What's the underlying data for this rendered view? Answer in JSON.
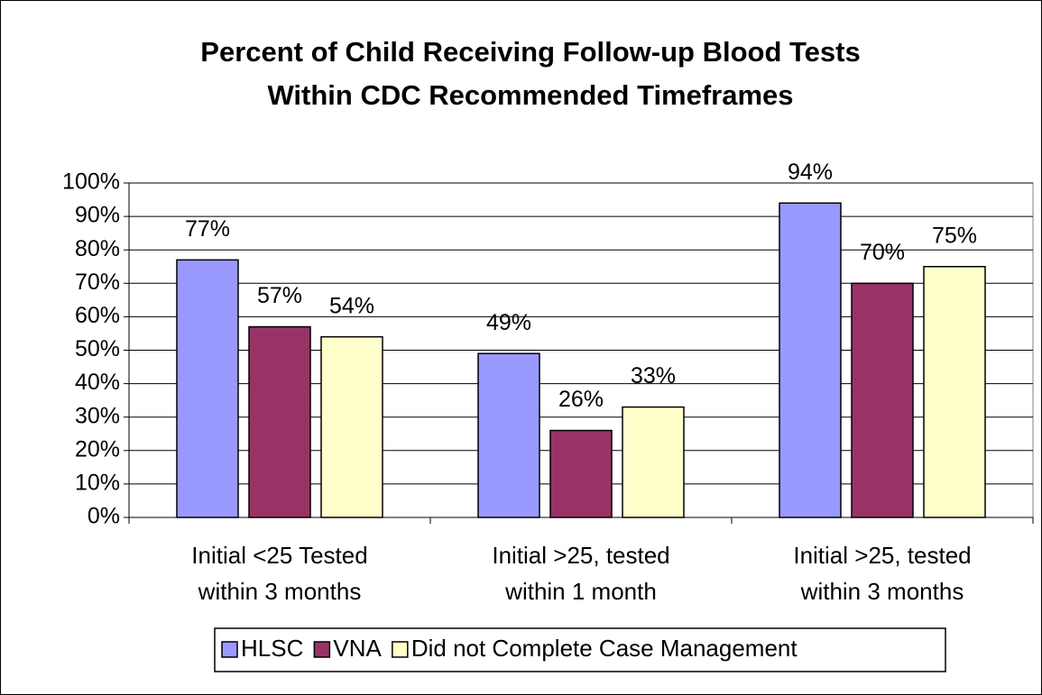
{
  "chart_data": {
    "type": "bar",
    "title": [
      "Percent of Child Receiving Follow-up Blood Tests",
      "Within CDC Recommended Timeframes"
    ],
    "categories": [
      [
        "Initial <25 Tested",
        "within 3 months"
      ],
      [
        "Initial >25, tested",
        "within 1 month"
      ],
      [
        "Initial >25, tested",
        "within 3 months"
      ]
    ],
    "series": [
      {
        "name": "HLSC",
        "color": "#9999ff",
        "values": [
          77,
          49,
          94
        ],
        "value_labels": [
          "77%",
          "49%",
          "94%"
        ]
      },
      {
        "name": "VNA",
        "color": "#993366",
        "values": [
          57,
          26,
          70
        ],
        "value_labels": [
          "57%",
          "26%",
          "70%"
        ]
      },
      {
        "name": "Did not Complete Case Management",
        "color": "#ffffcc",
        "values": [
          54,
          33,
          75
        ],
        "value_labels": [
          "54%",
          "33%",
          "75%"
        ]
      }
    ],
    "ylim": [
      0,
      100
    ],
    "yticks": [
      {
        "value": 0,
        "label": "0%"
      },
      {
        "value": 10,
        "label": "10%"
      },
      {
        "value": 20,
        "label": "20%"
      },
      {
        "value": 30,
        "label": "30%"
      },
      {
        "value": 40,
        "label": "40%"
      },
      {
        "value": 50,
        "label": "50%"
      },
      {
        "value": 60,
        "label": "60%"
      },
      {
        "value": 70,
        "label": "70%"
      },
      {
        "value": 80,
        "label": "80%"
      },
      {
        "value": 90,
        "label": "90%"
      },
      {
        "value": 100,
        "label": "100%"
      }
    ],
    "grid": true,
    "legend": "bottom"
  }
}
